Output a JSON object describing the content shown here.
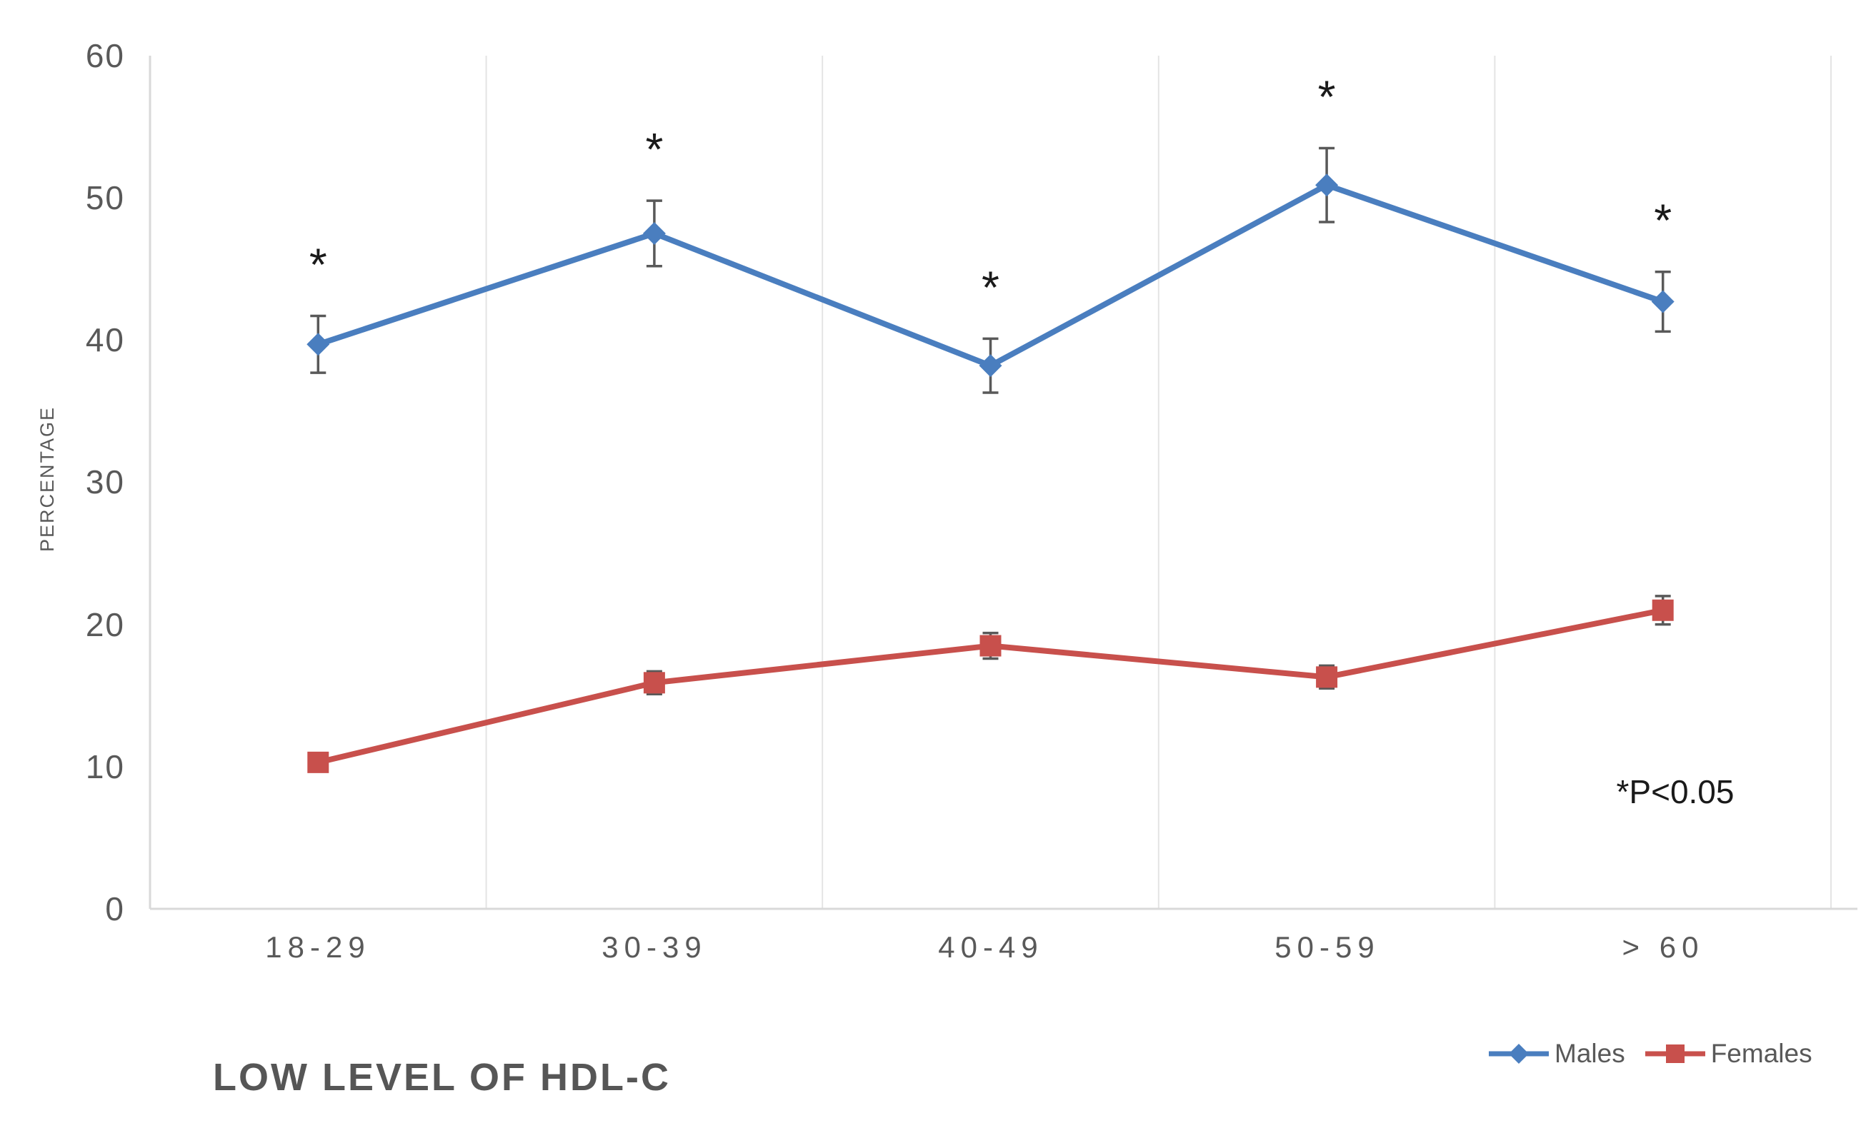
{
  "chart_data": {
    "type": "line",
    "title": "LOW LEVEL OF HDL-C",
    "ylabel": "PERCENTAGE",
    "xlabel": "",
    "annotation": "*P<0.05",
    "sig_symbol": "*",
    "categories": [
      "18-29",
      "30-39",
      "40-49",
      "50-59",
      "> 60"
    ],
    "y_ticks": [
      "60",
      "50",
      "40",
      "30",
      "20",
      "10",
      "0"
    ],
    "ylim": [
      0,
      60
    ],
    "grid": "vertical-category-separators",
    "legend_position": "bottom-right",
    "error_bar_color": "#595959",
    "axis_color": "#d9d9d9",
    "gridline_color": "#e4e4e4",
    "series": [
      {
        "name": "Males",
        "marker": "diamond",
        "color": "#4a7ebf",
        "values": [
          39.7,
          47.5,
          38.2,
          50.9,
          42.7
        ],
        "errors": [
          2.0,
          2.3,
          1.9,
          2.6,
          2.1
        ],
        "significant": [
          true,
          true,
          true,
          true,
          true
        ]
      },
      {
        "name": "Females",
        "marker": "square",
        "color": "#c8504c",
        "values": [
          10.3,
          15.9,
          18.5,
          16.3,
          21.0
        ],
        "errors": [
          0.3,
          0.8,
          0.9,
          0.8,
          1.0
        ],
        "significant": [
          false,
          false,
          false,
          false,
          false
        ]
      }
    ]
  }
}
